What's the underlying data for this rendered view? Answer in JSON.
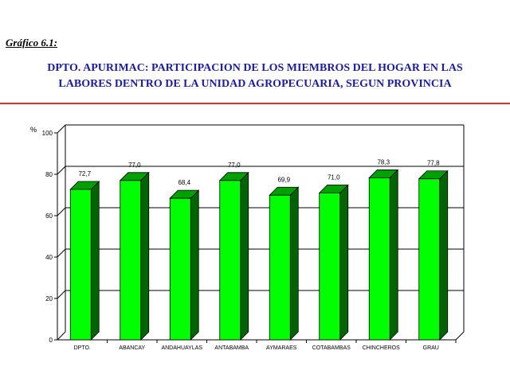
{
  "figure_label": "Gráfico 6.1:",
  "title_line1": "DPTO. APURIMAC: PARTICIPACION DE LOS MIEMBROS DEL HOGAR EN LAS",
  "title_line2": "LABORES DENTRO DE LA UNIDAD AGROPECUARIA, SEGUN PROVINCIA",
  "colors": {
    "bar_front": "#00ff00",
    "bar_side": "#006400",
    "bar_top": "#00a000",
    "title": "#1c1ca0",
    "rule": "#e0302a"
  },
  "chart_data": {
    "type": "bar",
    "ylabel": "%",
    "ylim": [
      0,
      100
    ],
    "yticks": [
      "0",
      "20",
      "40",
      "60",
      "80",
      "100"
    ],
    "grid": true,
    "categories": [
      "DPTO.",
      "ABANCAY",
      "ANDAHUAYLAS",
      "ANTABAMBA",
      "AYMARAES",
      "COTABAMBAS",
      "CHINCHEROS",
      "GRAU"
    ],
    "values": [
      72.7,
      77.0,
      68.4,
      77.0,
      69.9,
      71.0,
      78.3,
      77.8
    ],
    "data_labels": [
      "72,7",
      "77,0",
      "68,4",
      "77,0",
      "69,9",
      "71,0",
      "78,3",
      "77,8"
    ]
  }
}
